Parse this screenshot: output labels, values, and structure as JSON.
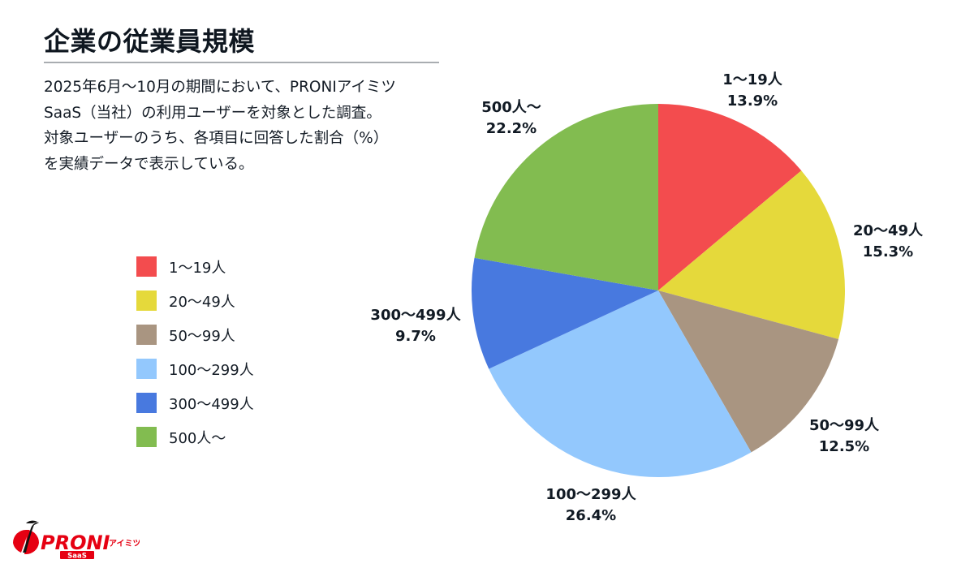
{
  "header": {
    "title": "企業の従業員規模"
  },
  "description": {
    "lines": [
      "2025年6月〜10月の期間において、PRONIアイミツ",
      "SaaS（当社）の利用ユーザーを対象とした調査。",
      "対象ユーザーのうち、各項目に回答した割合（%）",
      "を実績データで表示している。"
    ]
  },
  "legend": {
    "items": [
      {
        "label": "1〜19人",
        "color": "#f34c4e"
      },
      {
        "label": "20〜49人",
        "color": "#e5d93b"
      },
      {
        "label": "50〜99人",
        "color": "#a99581"
      },
      {
        "label": "100〜299人",
        "color": "#93c8fd"
      },
      {
        "label": "300〜499人",
        "color": "#4879df"
      },
      {
        "label": "500人〜",
        "color": "#82bc50"
      }
    ]
  },
  "logo": {
    "brand": "PRONI",
    "sub": "アイミツ",
    "badge": "SaaS",
    "color": "#e60012"
  },
  "chart_data": {
    "type": "pie",
    "title": "企業の従業員規模",
    "categories": [
      "1〜19人",
      "20〜49人",
      "50〜99人",
      "100〜299人",
      "300〜499人",
      "500人〜"
    ],
    "values": [
      13.9,
      15.3,
      12.5,
      26.4,
      9.7,
      22.2
    ],
    "unit": "%",
    "colors": [
      "#f34c4e",
      "#e5d93b",
      "#a99581",
      "#93c8fd",
      "#4879df",
      "#82bc50"
    ],
    "start_angle": "12 o'clock",
    "direction": "clockwise",
    "labels": [
      {
        "name": "1〜19人",
        "value": "13.9%"
      },
      {
        "name": "20〜49人",
        "value": "15.3%"
      },
      {
        "name": "50〜99人",
        "value": "12.5%"
      },
      {
        "name": "100〜299人",
        "value": "26.4%"
      },
      {
        "name": "300〜499人",
        "value": "9.7%"
      },
      {
        "name": "500人〜",
        "value": "22.2%"
      }
    ],
    "legend_position": "left"
  }
}
